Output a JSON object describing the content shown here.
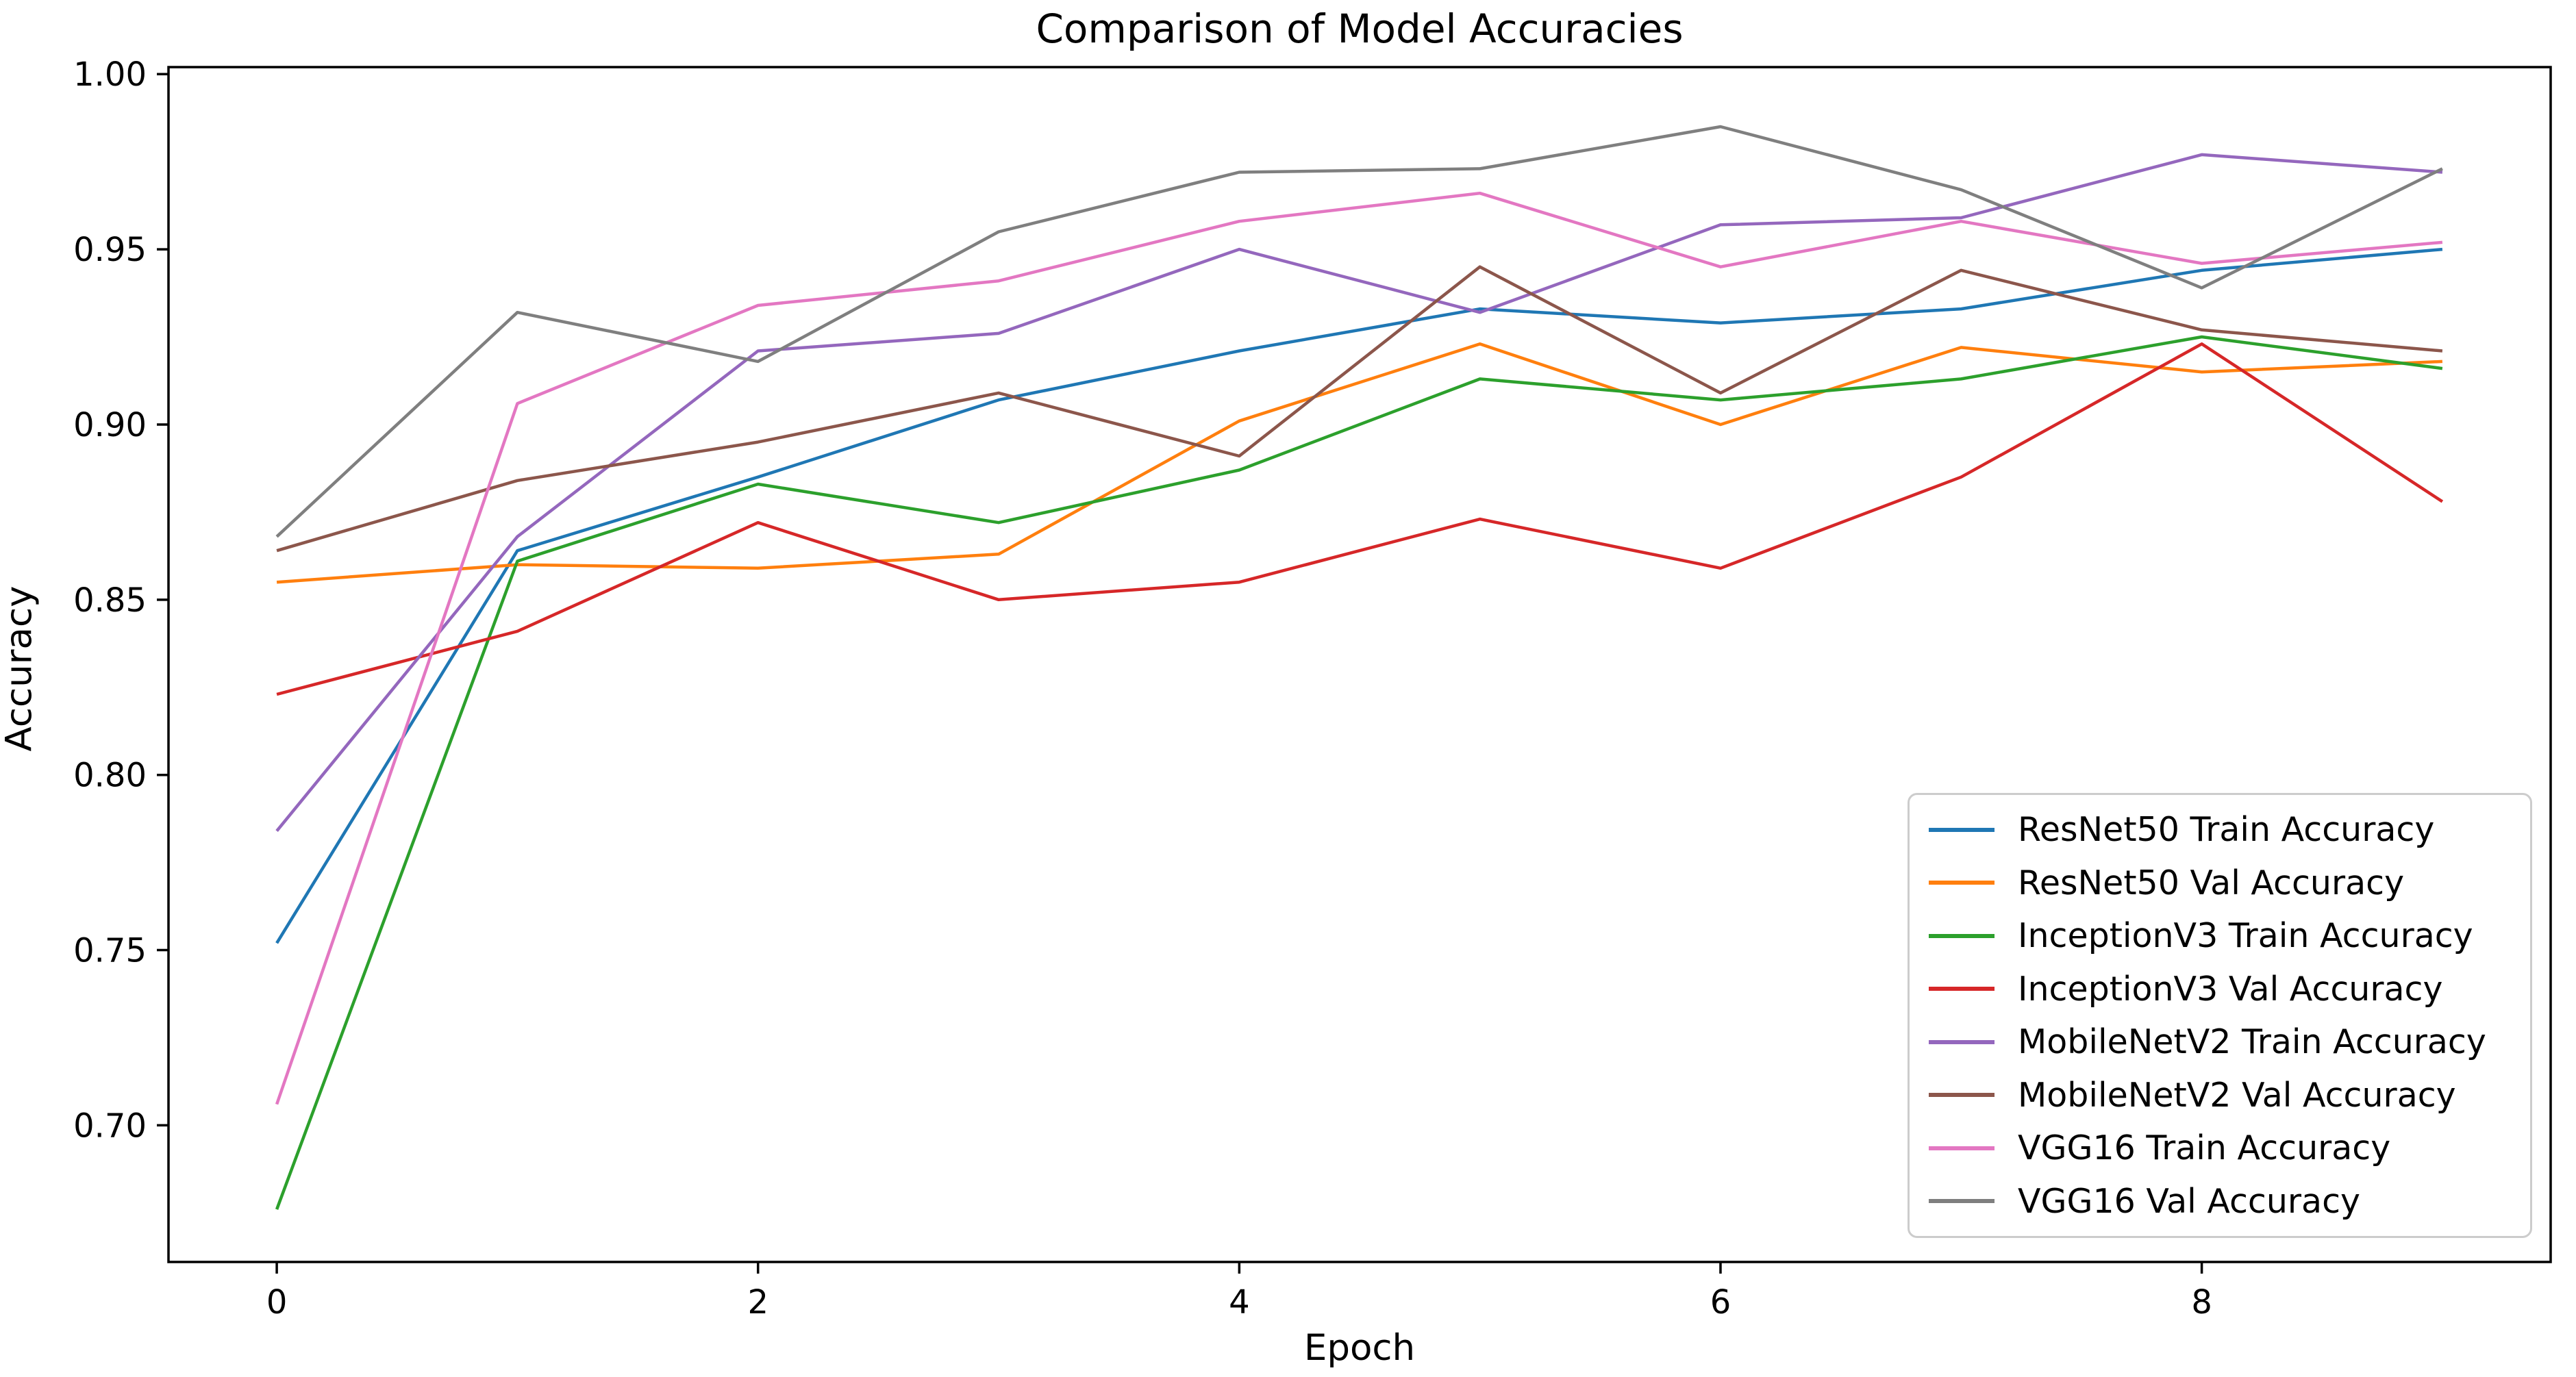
{
  "figure": {
    "background": "#ffffff",
    "spine_color": "#000000",
    "tick_color": "#000000",
    "tick_font_size": 48
  },
  "chart_data": {
    "type": "line",
    "title": "Comparison of Model Accuracies",
    "xlabel": "Epoch",
    "ylabel": "Accuracy",
    "grid": false,
    "legend_position": "lower right",
    "x": [
      0,
      1,
      2,
      3,
      4,
      5,
      6,
      7,
      8,
      9
    ],
    "xlim": [
      -0.45,
      9.45
    ],
    "ylim": [
      0.661,
      1.002
    ],
    "x_ticks": [
      0,
      2,
      4,
      6,
      8
    ],
    "x_tick_labels": [
      "0",
      "2",
      "4",
      "6",
      "8"
    ],
    "y_ticks": [
      0.7,
      0.75,
      0.8,
      0.85,
      0.9,
      0.95,
      1.0
    ],
    "y_tick_labels": [
      "0.70",
      "0.75",
      "0.80",
      "0.85",
      "0.90",
      "0.95",
      "1.00"
    ],
    "series": [
      {
        "name": "ResNet50 Train Accuracy",
        "color": "#1f77b4",
        "values": [
          0.752,
          0.864,
          0.885,
          0.907,
          0.921,
          0.933,
          0.929,
          0.933,
          0.944,
          0.95
        ]
      },
      {
        "name": "ResNet50 Val Accuracy",
        "color": "#ff7f0e",
        "values": [
          0.855,
          0.86,
          0.859,
          0.863,
          0.901,
          0.923,
          0.9,
          0.922,
          0.915,
          0.918
        ]
      },
      {
        "name": "InceptionV3 Train Accuracy",
        "color": "#2ca02c",
        "values": [
          0.676,
          0.861,
          0.883,
          0.872,
          0.887,
          0.913,
          0.907,
          0.913,
          0.925,
          0.916
        ]
      },
      {
        "name": "InceptionV3 Val Accuracy",
        "color": "#d62728",
        "values": [
          0.823,
          0.841,
          0.872,
          0.85,
          0.855,
          0.873,
          0.859,
          0.885,
          0.923,
          0.878
        ]
      },
      {
        "name": "MobileNetV2 Train Accuracy",
        "color": "#9467bd",
        "values": [
          0.784,
          0.868,
          0.921,
          0.926,
          0.95,
          0.932,
          0.957,
          0.959,
          0.977,
          0.972
        ]
      },
      {
        "name": "MobileNetV2 Val Accuracy",
        "color": "#8c564b",
        "values": [
          0.864,
          0.884,
          0.895,
          0.909,
          0.891,
          0.945,
          0.909,
          0.944,
          0.927,
          0.921
        ]
      },
      {
        "name": "VGG16 Train Accuracy",
        "color": "#e377c2",
        "values": [
          0.706,
          0.906,
          0.934,
          0.941,
          0.958,
          0.966,
          0.945,
          0.958,
          0.946,
          0.952
        ]
      },
      {
        "name": "VGG16 Val Accuracy",
        "color": "#7f7f7f",
        "values": [
          0.868,
          0.932,
          0.918,
          0.955,
          0.972,
          0.973,
          0.985,
          0.967,
          0.939,
          0.973
        ]
      }
    ]
  }
}
